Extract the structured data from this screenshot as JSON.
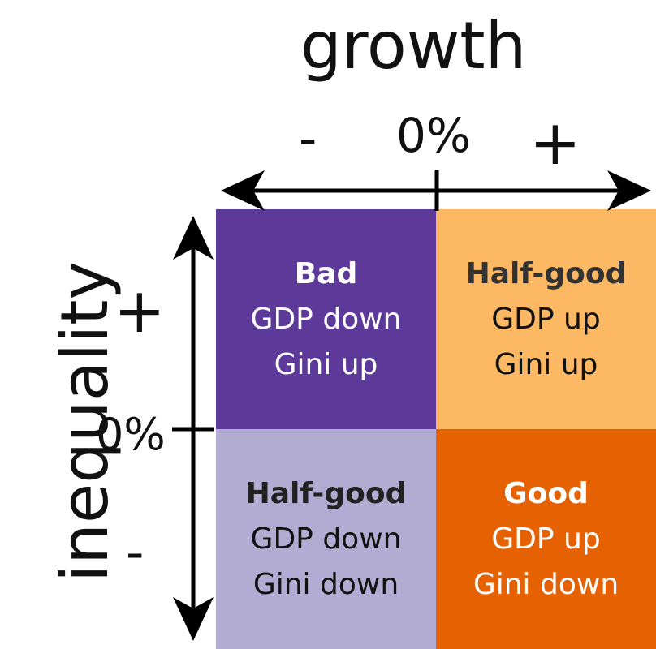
{
  "colors": {
    "bad": "#5d3a99",
    "half_good_top": "#fdb863",
    "half_good_bottom": "#b2abd2",
    "good": "#e66101",
    "axis": "#000000"
  },
  "x_axis": {
    "title": "growth",
    "minus": "-",
    "zero": "0%",
    "plus": "+"
  },
  "y_axis": {
    "title": "inequality",
    "minus": "-",
    "zero": "0%",
    "plus": "+"
  },
  "quadrants": {
    "top_left": {
      "heading": "Bad",
      "line1": "GDP down",
      "line2": "Gini up"
    },
    "top_right": {
      "heading": "Half-good",
      "line1": "GDP up",
      "line2": "Gini up"
    },
    "bottom_left": {
      "heading": "Half-good",
      "line1": "GDP down",
      "line2": "Gini down"
    },
    "bottom_right": {
      "heading": "Good",
      "line1": "GDP up",
      "line2": "Gini down"
    }
  }
}
